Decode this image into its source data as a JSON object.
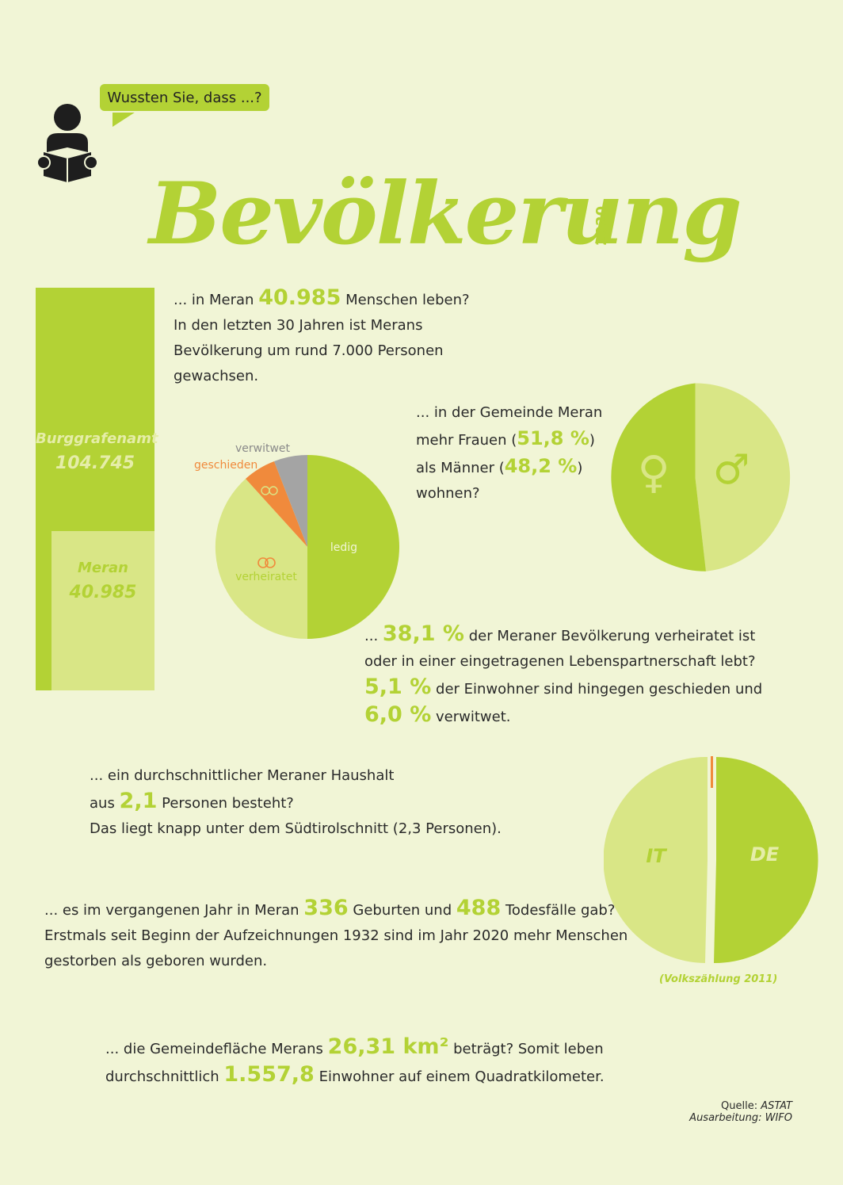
{
  "header": {
    "bubble_text": "Wussten Sie, dass ...?",
    "title": "Bevölkerung",
    "year": "2020"
  },
  "population": {
    "prefix": "... in Meran ",
    "value": "40.985",
    "suffix": " Menschen leben?",
    "line2": "In den letzten 30 Jahren ist Merans",
    "line3": "Bevölkerung um rund 7.000 Personen",
    "line4": "gewachsen."
  },
  "bar": {
    "outer_name": "Burggrafenamt",
    "outer_value": "104.745",
    "inner_name": "Meran",
    "inner_value": "40.985"
  },
  "gender": {
    "line1": "... in der Gemeinde Meran",
    "line2_prefix": "mehr Frauen (",
    "female_value": "51,8 %",
    "line2_suffix": ")",
    "line3_prefix": "als Männer (",
    "male_value": "48,2 %",
    "line3_suffix": ")",
    "line4": "wohnen?",
    "female_symbol": "♀",
    "male_symbol": "♂"
  },
  "marital_pie": {
    "labels": {
      "ledig": "ledig",
      "verheiratet": "verheiratet",
      "geschieden": "geschieden",
      "verwitwet": "verwitwet"
    }
  },
  "marital_text": {
    "line1_prefix": "... ",
    "married_value": "38,1 %",
    "line1_suffix": " der Meraner Bevölkerung verheiratet ist",
    "line2": "oder in einer eingetragenen Lebenspartnerschaft lebt?",
    "divorced_value": "5,1 %",
    "line3_suffix": " der Einwohner sind hingegen geschieden und",
    "widowed_value": "6,0 %",
    "line4_suffix": " verwitwet."
  },
  "household": {
    "line1": "... ein durchschnittlicher Meraner Haushalt",
    "line2_prefix": "aus ",
    "value": "2,1",
    "line2_suffix": " Personen besteht?",
    "line3": "Das liegt knapp unter dem Südtirolschnitt (2,3 Personen)."
  },
  "language_pie": {
    "it_label": "IT",
    "de_label": "DE",
    "note": "(Volkszählung 2011)"
  },
  "births": {
    "prefix": "... es im vergangenen Jahr in Meran ",
    "births_value": "336",
    "middle": " Geburten und ",
    "deaths_value": "488",
    "suffix": " Todesfälle gab?",
    "line2": "Erstmals seit Beginn der Aufzeichnungen 1932 sind im Jahr 2020 mehr Menschen",
    "line3": "gestorben als geboren wurden."
  },
  "area": {
    "prefix": "... die Gemeindefläche Merans ",
    "area_value": "26,31 km²",
    "suffix": " beträgt? Somit leben",
    "line2_prefix": "durchschnittlich ",
    "density_value": "1.557,8",
    "line2_suffix": " Einwohner auf einem Quadratkilometer."
  },
  "footer": {
    "source_label": "Quelle: ",
    "source_value": "ASTAT",
    "processing": "Ausarbeitung: WIFO"
  },
  "colors": {
    "background": "#f1f5d6",
    "green": "#b3d235",
    "light_green": "#d9e686",
    "orange": "#f08a3c",
    "gray": "#a4a4a4",
    "dark": "#2a2a2a"
  }
}
